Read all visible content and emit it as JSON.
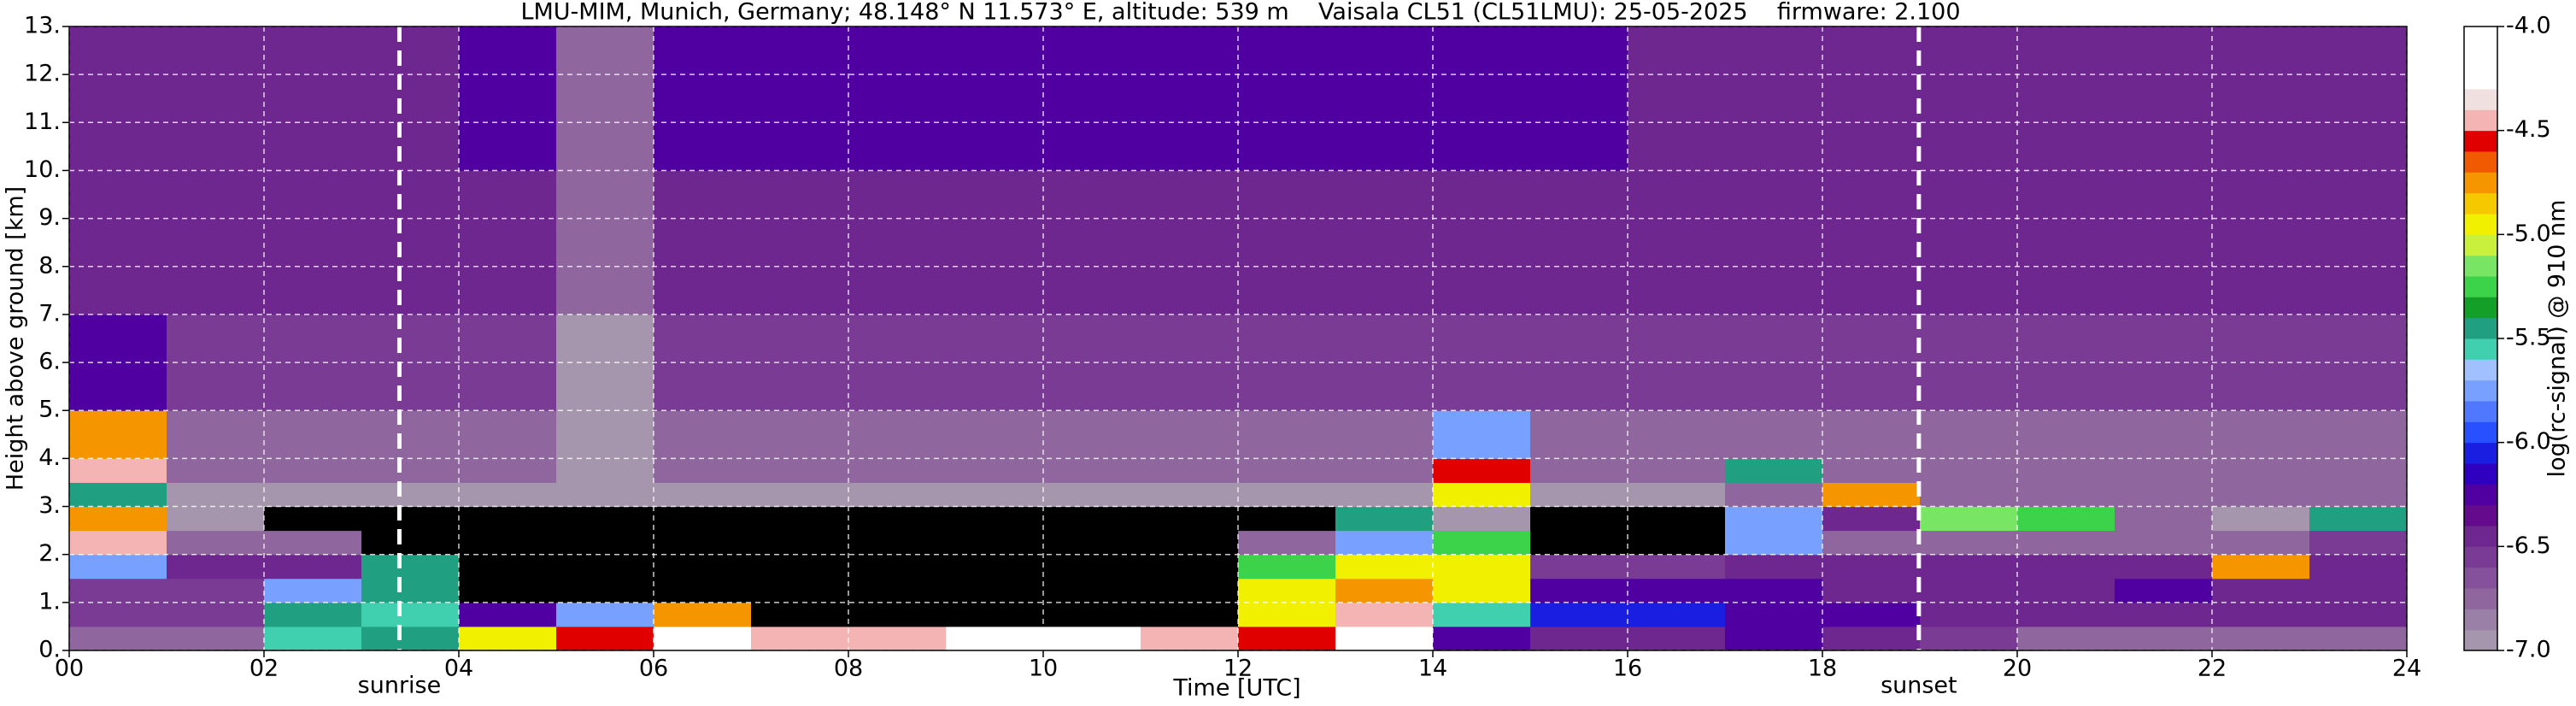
{
  "chart_data": {
    "type": "heatmap",
    "title": "LMU-MIM, Munich, Germany; 48.148° N 11.573° E, altitude: 539 m    Vaisala CL51 (CL51LMU): 25-05-2025    firmware: 2.100",
    "x_label": "Time [UTC]",
    "y_label": "Height above ground [km]",
    "colorbar_label": "log(rc-signal) @ 910 nm",
    "xlim": [
      0,
      24
    ],
    "ylim": [
      0,
      13
    ],
    "clim": [
      -7,
      -4
    ],
    "grid": true,
    "xticks": [
      {
        "value": 0,
        "label": "00"
      },
      {
        "value": 2,
        "label": "02"
      },
      {
        "value": 4,
        "label": "04"
      },
      {
        "value": 6,
        "label": "06"
      },
      {
        "value": 8,
        "label": "08"
      },
      10,
      12,
      14,
      16,
      18,
      20,
      22,
      24
    ],
    "yticks": [
      {
        "value": 0,
        "label": "0."
      },
      {
        "value": 1,
        "label": "1."
      },
      {
        "value": 2,
        "label": "2."
      },
      {
        "value": 3,
        "label": "3."
      },
      {
        "value": 4,
        "label": "4."
      },
      {
        "value": 5,
        "label": "5."
      },
      {
        "value": 6,
        "label": "6."
      },
      {
        "value": 7,
        "label": "7."
      },
      {
        "value": 8,
        "label": "8."
      },
      {
        "value": 9,
        "label": "9."
      },
      {
        "value": 10,
        "label": "10."
      },
      {
        "value": 11,
        "label": "11."
      },
      {
        "value": 12,
        "label": "12."
      },
      {
        "value": 13,
        "label": "13."
      }
    ],
    "cticks": [
      {
        "value": -7,
        "label": "-7.0"
      },
      {
        "value": -6.5,
        "label": "-6.5"
      },
      {
        "value": -6,
        "label": "-6.0"
      },
      {
        "value": -5.5,
        "label": "-5.5"
      },
      {
        "value": -5,
        "label": "-5.0"
      },
      {
        "value": -4.5,
        "label": "-4.5"
      },
      {
        "value": -4,
        "label": "-4.0"
      }
    ],
    "colorscale": [
      "#a596ad",
      "#9a7fa6",
      "#8f669e",
      "#84519a",
      "#7a3b95",
      "#6f2790",
      "#640a8c",
      "#5000a0",
      "#3000c0",
      "#1a1ee0",
      "#2850ff",
      "#5078ff",
      "#78a0ff",
      "#a0c0ff",
      "#40d0b0",
      "#20a080",
      "#14a028",
      "#3cd24a",
      "#78e664",
      "#c8f03c",
      "#f0f000",
      "#f5c800",
      "#f59600",
      "#f05a00",
      "#e00000",
      "#f5b4b4",
      "#f0e0e0",
      "#ffffff",
      "#ffffff",
      "#ffffff"
    ],
    "under_color": "#000000",
    "x_edges": [
      0,
      1,
      2,
      3,
      4,
      5,
      6,
      7,
      8,
      9,
      10,
      11,
      12,
      13,
      14,
      15,
      16,
      17,
      18,
      19,
      20,
      21,
      22,
      23,
      24
    ],
    "y_edges": [
      0,
      0.5,
      1,
      1.5,
      2,
      2.5,
      3,
      3.5,
      4,
      5,
      7,
      10,
      13
    ],
    "z": [
      [
        -6.7,
        -6.7,
        -5.6,
        -5.4,
        -5.0,
        -4.6,
        -4.3,
        -4.4,
        -4.5,
        -4.3,
        -4.3,
        -4.4,
        -4.6,
        -4.3,
        -6.2,
        -6.4,
        -6.4,
        -6.3,
        -6.5,
        -6.6,
        -6.7,
        -6.7,
        -6.7,
        -6.7
      ],
      [
        -6.6,
        -6.6,
        -5.5,
        -5.6,
        -6.2,
        -5.8,
        -4.8,
        -7.2,
        -7.2,
        -7.2,
        -7.2,
        -7.2,
        -5.0,
        -4.5,
        -5.6,
        -6.1,
        -6.1,
        -6.2,
        -6.2,
        -6.5,
        -6.5,
        -6.5,
        -6.4,
        -6.5
      ],
      [
        -6.6,
        -6.6,
        -5.8,
        -5.5,
        -7.2,
        -7.2,
        -7.2,
        -7.2,
        -7.2,
        -7.2,
        -7.2,
        -7.2,
        -5.0,
        -4.8,
        -5.0,
        -6.3,
        -6.3,
        -6.3,
        -6.4,
        -6.5,
        -6.5,
        -6.2,
        -6.5,
        -6.5
      ],
      [
        -5.8,
        -6.5,
        -6.4,
        -5.5,
        -7.2,
        -7.2,
        -7.2,
        -7.2,
        -7.2,
        -7.2,
        -7.2,
        -7.2,
        -5.3,
        -5.0,
        -5.0,
        -6.6,
        -6.6,
        -6.4,
        -6.5,
        -6.5,
        -6.5,
        -6.5,
        -4.8,
        -6.5
      ],
      [
        -4.5,
        -6.7,
        -6.8,
        -7.2,
        -7.2,
        -7.2,
        -7.2,
        -7.2,
        -7.2,
        -7.2,
        -7.2,
        -7.2,
        -6.8,
        -5.8,
        -5.3,
        -7.2,
        -7.2,
        -5.8,
        -6.7,
        -6.7,
        -6.7,
        -6.7,
        -6.7,
        -6.6
      ],
      [
        -4.8,
        -7.0,
        -7.2,
        -7.2,
        -7.2,
        -7.2,
        -7.2,
        -7.2,
        -7.2,
        -7.2,
        -7.2,
        -7.2,
        -7.1,
        -5.5,
        -7.0,
        -7.1,
        -7.1,
        -5.8,
        -6.5,
        -5.2,
        -5.3,
        -6.8,
        -7.0,
        -5.5
      ],
      [
        -5.5,
        -6.9,
        -6.9,
        -6.9,
        -6.9,
        -7.0,
        -6.9,
        -6.9,
        -6.9,
        -6.9,
        -6.9,
        -6.9,
        -6.9,
        -6.9,
        -5.0,
        -6.9,
        -6.9,
        -6.8,
        -4.8,
        -6.8,
        -6.8,
        -6.8,
        -6.8,
        -6.8
      ],
      [
        -4.5,
        -6.8,
        -6.8,
        -6.8,
        -6.8,
        -7.0,
        -6.8,
        -6.8,
        -6.8,
        -6.8,
        -6.8,
        -6.8,
        -6.8,
        -6.8,
        -4.6,
        -6.8,
        -6.8,
        -5.5,
        -6.8,
        -6.8,
        -6.8,
        -6.8,
        -6.8,
        -6.8
      ],
      [
        -4.8,
        -6.7,
        -6.7,
        -6.7,
        -6.7,
        -7.0,
        -6.7,
        -6.7,
        -6.7,
        -6.7,
        -6.7,
        -6.7,
        -6.7,
        -6.7,
        -5.8,
        -6.7,
        -6.7,
        -6.7,
        -6.7,
        -6.7,
        -6.7,
        -6.7,
        -6.7,
        -6.7
      ],
      [
        -6.2,
        -6.6,
        -6.6,
        -6.6,
        -6.6,
        -6.9,
        -6.6,
        -6.6,
        -6.6,
        -6.6,
        -6.6,
        -6.6,
        -6.6,
        -6.6,
        -6.6,
        -6.6,
        -6.6,
        -6.6,
        -6.6,
        -6.6,
        -6.6,
        -6.6,
        -6.6,
        -6.6
      ],
      [
        -6.5,
        -6.5,
        -6.5,
        -6.5,
        -6.5,
        -6.8,
        -6.4,
        -6.4,
        -6.4,
        -6.4,
        -6.4,
        -6.4,
        -6.4,
        -6.4,
        -6.4,
        -6.4,
        -6.5,
        -6.5,
        -6.5,
        -6.5,
        -6.5,
        -6.5,
        -6.5,
        -6.5
      ],
      [
        -6.4,
        -6.4,
        -6.4,
        -6.4,
        -6.3,
        -6.7,
        -6.2,
        -6.2,
        -6.2,
        -6.2,
        -6.2,
        -6.2,
        -6.3,
        -6.3,
        -6.3,
        -6.3,
        -6.4,
        -6.4,
        -6.4,
        -6.4,
        -6.4,
        -6.4,
        -6.4,
        -6.4
      ]
    ],
    "annotations": [
      {
        "x": 3.39,
        "label": "sunrise"
      },
      {
        "x": 18.99,
        "label": "sunset"
      }
    ]
  }
}
